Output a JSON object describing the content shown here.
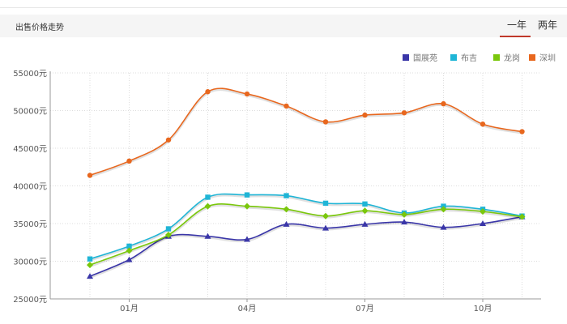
{
  "header": {
    "title": "出售价格走势",
    "tabs": [
      {
        "label": "一年",
        "active": true
      },
      {
        "label": "两年",
        "active": false
      }
    ],
    "active_color": "#c0392b"
  },
  "chart_data": {
    "type": "line",
    "ylim": [
      25000,
      55000
    ],
    "y_ticks": [
      25000,
      30000,
      35000,
      40000,
      45000,
      50000,
      55000
    ],
    "y_tick_labels": [
      "25000元",
      "30000元",
      "35000元",
      "40000元",
      "45000元",
      "50000元",
      "55000元"
    ],
    "x_points": 12,
    "x_ticks": [
      {
        "index": 1,
        "label": "01月"
      },
      {
        "index": 4,
        "label": "04月"
      },
      {
        "index": 7,
        "label": "07月"
      },
      {
        "index": 10,
        "label": "10月"
      }
    ],
    "grid": true,
    "legend_position": "top-right",
    "series": [
      {
        "name": "国展苑",
        "color": "#3a36a8",
        "marker": "triangle",
        "values": [
          28000,
          30200,
          33300,
          33300,
          32900,
          34900,
          34400,
          34900,
          35200,
          34500,
          35000,
          35900
        ]
      },
      {
        "name": "布吉",
        "color": "#1fb5d6",
        "marker": "square",
        "values": [
          30300,
          32000,
          34300,
          38500,
          38800,
          38700,
          37700,
          37600,
          36400,
          37300,
          36900,
          36000
        ]
      },
      {
        "name": "龙岗",
        "color": "#7ac70c",
        "marker": "diamond",
        "values": [
          29500,
          31400,
          33500,
          37300,
          37300,
          36900,
          36000,
          36700,
          36200,
          36900,
          36600,
          35900
        ]
      },
      {
        "name": "深圳",
        "color": "#e8671e",
        "marker": "circle",
        "values": [
          41400,
          43300,
          46100,
          52500,
          52200,
          50600,
          48500,
          49400,
          49700,
          50900,
          48200,
          47200
        ]
      }
    ]
  }
}
